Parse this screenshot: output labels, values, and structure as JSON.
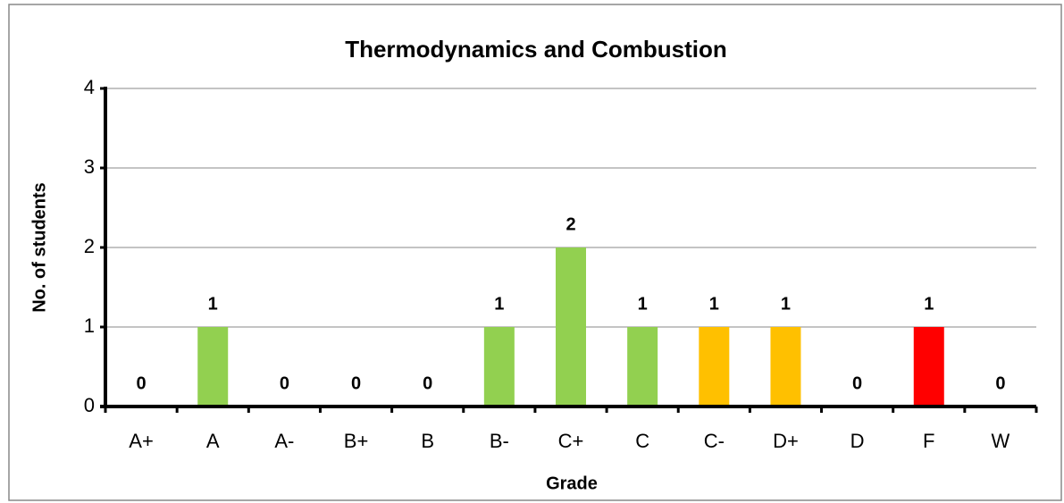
{
  "chart_data": {
    "type": "bar",
    "title": "Thermodynamics and Combustion",
    "x_label": "Grade",
    "y_label": "No. of students",
    "categories": [
      "A+",
      "A",
      "A-",
      "B+",
      "B",
      "B-",
      "C+",
      "C",
      "C-",
      "D+",
      "D",
      "F",
      "W"
    ],
    "values": [
      0,
      1,
      0,
      0,
      0,
      1,
      2,
      1,
      1,
      1,
      0,
      1,
      0
    ],
    "colors": [
      "#92d050",
      "#92d050",
      "#92d050",
      "#92d050",
      "#92d050",
      "#92d050",
      "#92d050",
      "#92d050",
      "#ffc000",
      "#ffc000",
      "#ffc000",
      "#ff0000",
      "#ff0000"
    ],
    "ylim": [
      0,
      4
    ],
    "yticks": [
      0,
      1,
      2,
      3,
      4
    ],
    "grid": true
  }
}
